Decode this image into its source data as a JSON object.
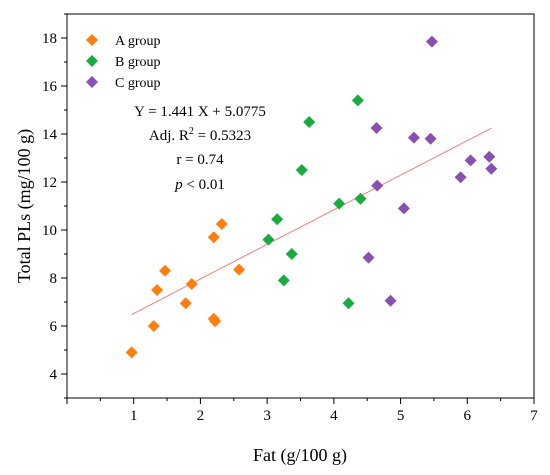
{
  "chart_data": {
    "type": "scatter",
    "xlabel": "Fat (g/100 g)",
    "ylabel": "Total PLs (mg/100 g)",
    "xlim": [
      0,
      7
    ],
    "ylim": [
      3,
      19
    ],
    "x_ticks": [
      1,
      2,
      3,
      4,
      5,
      6,
      7
    ],
    "y_ticks": [
      4,
      6,
      8,
      10,
      12,
      14,
      16,
      18
    ],
    "legend_position": "top-left",
    "series": [
      {
        "name": "A group",
        "color": "#ff7f0e",
        "marker": "diamond",
        "points": [
          [
            0.97,
            4.9
          ],
          [
            1.3,
            6.0
          ],
          [
            1.35,
            7.5
          ],
          [
            1.47,
            8.3
          ],
          [
            1.78,
            6.95
          ],
          [
            1.87,
            7.75
          ],
          [
            2.2,
            6.3
          ],
          [
            2.22,
            6.2
          ],
          [
            2.2,
            9.7
          ],
          [
            2.32,
            10.25
          ],
          [
            2.58,
            8.35
          ]
        ]
      },
      {
        "name": "B group",
        "color": "#1aab40",
        "marker": "diamond",
        "points": [
          [
            3.02,
            9.6
          ],
          [
            3.15,
            10.45
          ],
          [
            3.25,
            7.9
          ],
          [
            3.37,
            9.0
          ],
          [
            3.52,
            12.5
          ],
          [
            3.63,
            14.5
          ],
          [
            4.08,
            11.1
          ],
          [
            4.22,
            6.95
          ],
          [
            4.36,
            15.4
          ],
          [
            4.4,
            11.3
          ]
        ]
      },
      {
        "name": "C group",
        "color": "#8a4fb5",
        "marker": "diamond",
        "points": [
          [
            4.52,
            8.85
          ],
          [
            4.64,
            14.25
          ],
          [
            4.65,
            11.85
          ],
          [
            4.85,
            7.05
          ],
          [
            5.05,
            10.9
          ],
          [
            5.2,
            13.85
          ],
          [
            5.45,
            13.8
          ],
          [
            5.47,
            17.85
          ],
          [
            5.9,
            12.2
          ],
          [
            6.05,
            12.9
          ],
          [
            6.33,
            13.05
          ],
          [
            6.36,
            12.55
          ]
        ]
      }
    ],
    "fit_line": {
      "slope": 1.441,
      "intercept": 5.0775,
      "x_range": [
        0.97,
        6.36
      ],
      "color": "#f08080"
    },
    "annotations": {
      "equation": "Y = 1.441 X + 5.0775",
      "adj_r2_prefix": "Adj. R",
      "adj_r2_sup": "2",
      "adj_r2_value": " = 0.5323",
      "r": "r = 0.74",
      "p_symbol": "p",
      "p_value": " < 0.01"
    }
  }
}
